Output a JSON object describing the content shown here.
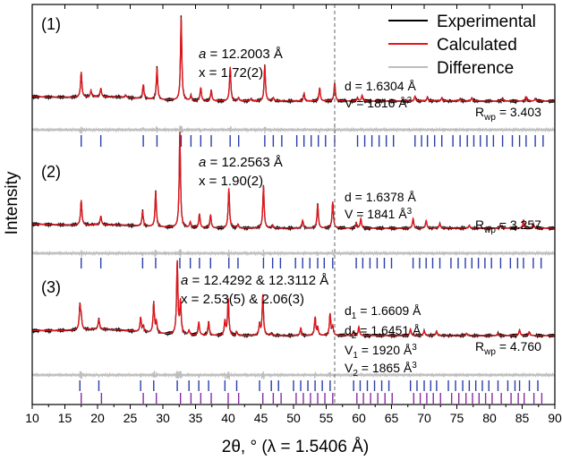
{
  "chart_data": {
    "type": "line",
    "xlabel": "2θ, ° (λ = 1.5406 Å)",
    "ylabel": "Intensity",
    "xlim": [
      10,
      90
    ],
    "xticks": [
      10,
      15,
      20,
      25,
      30,
      35,
      40,
      45,
      50,
      55,
      60,
      65,
      70,
      75,
      80,
      85,
      90
    ],
    "reference_line_x": 56.3,
    "legend": {
      "position": "top-right",
      "entries": [
        {
          "label": "Experimental",
          "color": "#000000"
        },
        {
          "label": "Calculated",
          "color": "#e8141b"
        },
        {
          "label": "Difference",
          "color": "#bdbdbd"
        }
      ]
    },
    "colors": {
      "experimental": "#000000",
      "calculated": "#e8141b",
      "difference": "#bdbdbd",
      "ticks_a": "#2b3ea8",
      "ticks_b": "#8a2aa2"
    },
    "panels": [
      {
        "tag": "(1)",
        "lattice_a": "= 12.2003 Å",
        "x_text": "x = 1.72(2)",
        "d_text": "d = 1.6304 Å",
        "v_text": "V = 1816 Å",
        "rwp": "= 3.403",
        "peaks": [
          {
            "x": 17.5,
            "h": 0.3
          },
          {
            "x": 19.0,
            "h": 0.07
          },
          {
            "x": 20.5,
            "h": 0.1
          },
          {
            "x": 24.3,
            "h": 0.03
          },
          {
            "x": 27.0,
            "h": 0.17
          },
          {
            "x": 29.1,
            "h": 0.38
          },
          {
            "x": 32.8,
            "h": 1.0
          },
          {
            "x": 34.3,
            "h": 0.06
          },
          {
            "x": 35.8,
            "h": 0.16
          },
          {
            "x": 37.4,
            "h": 0.13
          },
          {
            "x": 40.3,
            "h": 0.41
          },
          {
            "x": 41.6,
            "h": 0.04
          },
          {
            "x": 43.5,
            "h": 0.03
          },
          {
            "x": 45.6,
            "h": 0.43
          },
          {
            "x": 46.9,
            "h": 0.04
          },
          {
            "x": 51.6,
            "h": 0.09
          },
          {
            "x": 54.0,
            "h": 0.16
          },
          {
            "x": 56.3,
            "h": 0.22
          },
          {
            "x": 59.8,
            "h": 0.04
          },
          {
            "x": 60.5,
            "h": 0.07
          },
          {
            "x": 68.6,
            "h": 0.06
          },
          {
            "x": 70.5,
            "h": 0.05
          },
          {
            "x": 72.7,
            "h": 0.04
          },
          {
            "x": 75.5,
            "h": 0.03
          },
          {
            "x": 77.3,
            "h": 0.04
          },
          {
            "x": 82.0,
            "h": 0.03
          },
          {
            "x": 85.6,
            "h": 0.05
          },
          {
            "x": 87.0,
            "h": 0.03
          }
        ],
        "ticks": [
          {
            "color": "ticks_a",
            "positions": [
              17.5,
              20.5,
              27.0,
              29.1,
              32.8,
              34.3,
              35.8,
              37.4,
              40.3,
              41.6,
              45.6,
              46.9,
              48.2,
              50.5,
              51.6,
              52.7,
              53.8,
              54.9,
              56.3,
              59.8,
              60.9,
              62.0,
              63.1,
              64.2,
              65.3,
              68.6,
              69.6,
              70.5,
              71.6,
              72.7,
              74.4,
              75.5,
              76.6,
              77.6,
              78.6,
              79.6,
              80.6,
              82.0,
              83.5,
              84.6,
              85.6,
              87.0,
              88.2
            ]
          }
        ]
      },
      {
        "tag": "(2)",
        "lattice_a": "= 12.2563 Å",
        "x_text": "x = 1.90(2)",
        "d_text": "d = 1.6378 Å",
        "v_text": "V = 1841 Å",
        "rwp": "= 3.257",
        "peaks": [
          {
            "x": 17.5,
            "h": 0.26
          },
          {
            "x": 20.5,
            "h": 0.09
          },
          {
            "x": 26.9,
            "h": 0.16
          },
          {
            "x": 28.9,
            "h": 0.37
          },
          {
            "x": 32.6,
            "h": 1.0
          },
          {
            "x": 34.2,
            "h": 0.06
          },
          {
            "x": 35.6,
            "h": 0.15
          },
          {
            "x": 37.3,
            "h": 0.14
          },
          {
            "x": 40.1,
            "h": 0.42
          },
          {
            "x": 41.5,
            "h": 0.04
          },
          {
            "x": 45.4,
            "h": 0.45
          },
          {
            "x": 46.8,
            "h": 0.03
          },
          {
            "x": 51.4,
            "h": 0.08
          },
          {
            "x": 53.7,
            "h": 0.25
          },
          {
            "x": 56.0,
            "h": 0.28
          },
          {
            "x": 59.6,
            "h": 0.05
          },
          {
            "x": 60.3,
            "h": 0.1
          },
          {
            "x": 68.3,
            "h": 0.1
          },
          {
            "x": 70.3,
            "h": 0.08
          },
          {
            "x": 72.4,
            "h": 0.05
          },
          {
            "x": 76.9,
            "h": 0.03
          },
          {
            "x": 81.7,
            "h": 0.03
          },
          {
            "x": 85.2,
            "h": 0.08
          },
          {
            "x": 86.7,
            "h": 0.05
          }
        ],
        "ticks": [
          {
            "color": "ticks_a",
            "positions": [
              17.5,
              20.5,
              26.9,
              28.9,
              32.6,
              34.2,
              35.6,
              37.3,
              40.1,
              41.5,
              45.4,
              46.8,
              48.0,
              50.3,
              51.4,
              52.5,
              53.7,
              54.7,
              56.0,
              59.6,
              60.6,
              61.7,
              62.8,
              63.9,
              65.0,
              68.3,
              69.3,
              70.3,
              71.3,
              72.4,
              74.1,
              75.2,
              76.3,
              77.3,
              78.3,
              79.3,
              80.3,
              81.7,
              83.2,
              84.3,
              85.2,
              86.7,
              87.9
            ]
          }
        ]
      },
      {
        "tag": "(3)",
        "lattice_a": "= 12.4292 & 12.3112 Å",
        "x_text": "x = 2.53(5) & 2.06(3)",
        "d_text_1": "= 1.6609 Å",
        "d_text_2": "= 1.6451 Å",
        "v_text_1": "= 1920 Å",
        "v_text_2": "= 1865 Å",
        "rwp": "= 4.760",
        "peaks": [
          {
            "x": 17.3,
            "h": 0.33
          },
          {
            "x": 17.5,
            "h": 0.15
          },
          {
            "x": 20.2,
            "h": 0.15
          },
          {
            "x": 26.6,
            "h": 0.2
          },
          {
            "x": 27.0,
            "h": 0.08
          },
          {
            "x": 28.6,
            "h": 0.42
          },
          {
            "x": 29.0,
            "h": 0.15
          },
          {
            "x": 32.2,
            "h": 1.0
          },
          {
            "x": 32.7,
            "h": 0.45
          },
          {
            "x": 34.0,
            "h": 0.06
          },
          {
            "x": 35.5,
            "h": 0.18
          },
          {
            "x": 37.0,
            "h": 0.18
          },
          {
            "x": 39.5,
            "h": 0.2
          },
          {
            "x": 40.0,
            "h": 0.5
          },
          {
            "x": 41.3,
            "h": 0.05
          },
          {
            "x": 44.8,
            "h": 0.15
          },
          {
            "x": 45.3,
            "h": 0.56
          },
          {
            "x": 46.6,
            "h": 0.03
          },
          {
            "x": 51.1,
            "h": 0.1
          },
          {
            "x": 53.3,
            "h": 0.25
          },
          {
            "x": 53.7,
            "h": 0.1
          },
          {
            "x": 55.6,
            "h": 0.3
          },
          {
            "x": 56.0,
            "h": 0.12
          },
          {
            "x": 59.2,
            "h": 0.05
          },
          {
            "x": 60.0,
            "h": 0.12
          },
          {
            "x": 67.9,
            "h": 0.09
          },
          {
            "x": 70.0,
            "h": 0.07
          },
          {
            "x": 71.9,
            "h": 0.06
          },
          {
            "x": 76.5,
            "h": 0.03
          },
          {
            "x": 81.3,
            "h": 0.03
          },
          {
            "x": 84.6,
            "h": 0.08
          },
          {
            "x": 86.1,
            "h": 0.05
          }
        ],
        "ticks": [
          {
            "color": "ticks_a",
            "positions": [
              17.3,
              20.2,
              26.6,
              28.6,
              32.2,
              34.0,
              35.5,
              37.0,
              39.5,
              41.3,
              44.8,
              46.6,
              47.7,
              50.0,
              51.1,
              52.2,
              53.3,
              54.4,
              55.6,
              59.2,
              60.2,
              61.3,
              62.4,
              63.5,
              64.6,
              67.9,
              68.9,
              70.0,
              71.0,
              71.9,
              73.7,
              74.8,
              75.9,
              76.9,
              77.9,
              78.9,
              79.9,
              81.3,
              82.8,
              83.9,
              84.6,
              86.1,
              87.4
            ]
          },
          {
            "color": "ticks_b",
            "positions": [
              17.5,
              20.6,
              27.0,
              29.0,
              32.7,
              34.3,
              35.8,
              37.4,
              40.0,
              41.6,
              45.3,
              46.9,
              48.1,
              50.4,
              51.5,
              52.6,
              53.7,
              54.8,
              56.0,
              59.7,
              60.7,
              61.8,
              62.9,
              64.0,
              65.1,
              68.4,
              69.4,
              70.4,
              71.4,
              72.5,
              74.2,
              75.3,
              76.4,
              77.4,
              78.4,
              79.4,
              80.4,
              81.8,
              83.3,
              84.4,
              85.3,
              86.8,
              88.0
            ]
          }
        ]
      }
    ]
  }
}
